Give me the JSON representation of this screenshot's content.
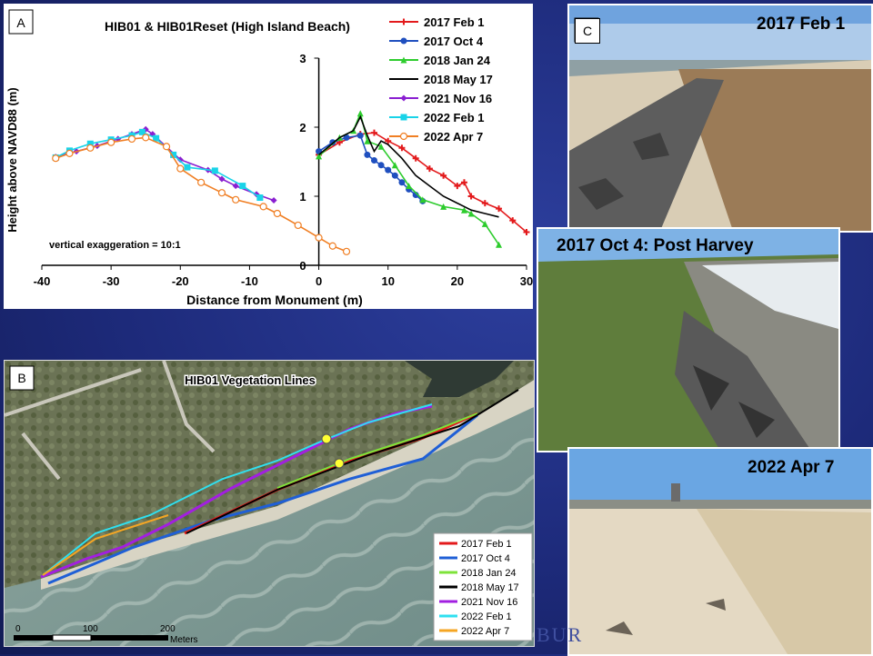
{
  "panel_a": {
    "letter": "A",
    "title": "HIB01 & HIB01Reset (High Island Beach)",
    "xlabel": "Distance from Monument (m)",
    "ylabel": "Height above NAVD88 (m)",
    "annotation": "vertical exaggeration = 10:1"
  },
  "chart_data": {
    "type": "line",
    "title": "HIB01 & HIB01Reset (High Island Beach)",
    "xlabel": "Distance from Monument (m)",
    "ylabel": "Height above NAVD88 (m)",
    "xlim": [
      -40,
      30
    ],
    "ylim": [
      0,
      3
    ],
    "xticks": [
      -40,
      -30,
      -20,
      -10,
      0,
      10,
      20,
      30
    ],
    "yticks": [
      0,
      1,
      2,
      3
    ],
    "grid": false,
    "legend": "top-right",
    "series": [
      {
        "name": "2017 Feb 1",
        "color": "#e31a1c",
        "marker": "plus",
        "x": [
          0,
          3,
          6,
          8,
          10,
          12,
          14,
          16,
          18,
          20,
          21,
          22,
          24,
          26,
          28,
          30
        ],
        "y": [
          1.6,
          1.78,
          1.9,
          1.92,
          1.8,
          1.7,
          1.55,
          1.4,
          1.3,
          1.15,
          1.2,
          1.0,
          0.9,
          0.82,
          0.65,
          0.48
        ]
      },
      {
        "name": "2017 Oct 4",
        "color": "#1f4fbf",
        "marker": "circle",
        "x": [
          0,
          2,
          4,
          6,
          7,
          8,
          9,
          10,
          11,
          12,
          13,
          14,
          15
        ],
        "y": [
          1.65,
          1.78,
          1.85,
          1.88,
          1.6,
          1.52,
          1.45,
          1.38,
          1.3,
          1.2,
          1.1,
          1.02,
          0.93
        ]
      },
      {
        "name": "2018 Jan 24",
        "color": "#2ecc2e",
        "marker": "triangle",
        "x": [
          0,
          3,
          5,
          6,
          7,
          9,
          11,
          13,
          15,
          18,
          21,
          22,
          24,
          26
        ],
        "y": [
          1.58,
          1.85,
          1.95,
          2.2,
          1.8,
          1.72,
          1.45,
          1.15,
          0.95,
          0.85,
          0.8,
          0.75,
          0.6,
          0.3
        ]
      },
      {
        "name": "2018 May 17",
        "color": "#000000",
        "marker": "none",
        "x": [
          0,
          3,
          5,
          6,
          7,
          8,
          9,
          10,
          12,
          14,
          16,
          18,
          20,
          22,
          24,
          26
        ],
        "y": [
          1.6,
          1.85,
          1.95,
          2.15,
          1.88,
          1.65,
          1.8,
          1.75,
          1.55,
          1.3,
          1.15,
          1.0,
          0.9,
          0.8,
          0.75,
          0.7
        ]
      },
      {
        "name": "2021 Nov 16",
        "color": "#8a1fd1",
        "marker": "diamond",
        "x": [
          -38,
          -35,
          -32,
          -29,
          -27,
          -25,
          -24,
          -20,
          -16,
          -14,
          -12,
          -9,
          -6.5
        ],
        "y": [
          1.57,
          1.65,
          1.73,
          1.83,
          1.9,
          1.97,
          1.9,
          1.53,
          1.38,
          1.25,
          1.15,
          1.03,
          0.94
        ]
      },
      {
        "name": "2022 Feb 1",
        "color": "#19d3e8",
        "marker": "square",
        "x": [
          -38,
          -36,
          -33,
          -30,
          -27,
          -25.5,
          -23.5,
          -21,
          -19,
          -15,
          -11,
          -8.5
        ],
        "y": [
          1.56,
          1.66,
          1.76,
          1.82,
          1.88,
          1.93,
          1.84,
          1.6,
          1.42,
          1.37,
          1.15,
          0.98
        ]
      },
      {
        "name": "2022 Apr 7",
        "color": "#f07f24",
        "marker": "open-circle",
        "x": [
          -38,
          -36,
          -33,
          -30,
          -27,
          -25,
          -22,
          -20,
          -17,
          -14,
          -12,
          -8,
          -6,
          -3,
          0,
          2,
          4
        ],
        "y": [
          1.55,
          1.62,
          1.7,
          1.78,
          1.83,
          1.85,
          1.72,
          1.4,
          1.2,
          1.05,
          0.95,
          0.85,
          0.75,
          0.58,
          0.4,
          0.28,
          0.2
        ]
      }
    ]
  },
  "panel_b": {
    "letter": "B",
    "title": "HIB01 Vegetation Lines",
    "legend": [
      {
        "label": "2017 Feb 1",
        "color": "#e31a1c"
      },
      {
        "label": "2017 Oct 4",
        "color": "#1f5fd6"
      },
      {
        "label": "2018 Jan 24",
        "color": "#7ee33a"
      },
      {
        "label": "2018 May 17",
        "color": "#000000"
      },
      {
        "label": "2021 Nov 16",
        "color": "#a21fe0"
      },
      {
        "label": "2022 Feb 1",
        "color": "#2fe0f0"
      },
      {
        "label": "2022 Apr 7",
        "color": "#f5a623"
      }
    ],
    "scale": {
      "t0": "0",
      "t1": "100",
      "t2": "200",
      "unit": "Meters"
    }
  },
  "panel_c": {
    "letter": "C",
    "photos": [
      {
        "title": "2017 Feb 1"
      },
      {
        "title": "2017 Oct 4: Post Harvey"
      },
      {
        "title": "2022 Apr 7"
      }
    ]
  },
  "watermark": "BUR"
}
